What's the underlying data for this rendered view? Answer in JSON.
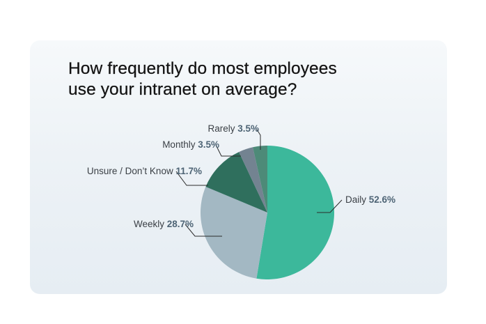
{
  "title": {
    "line1": "How frequently do most employees",
    "line2": "use your intranet on average?"
  },
  "chart_data": {
    "type": "pie",
    "title": "How frequently do most employees use your intranet on average?",
    "slices": [
      {
        "label": "Daily",
        "value": 52.6,
        "display": "52.6%",
        "color": "#3cb89b"
      },
      {
        "label": "Weekly",
        "value": 28.7,
        "display": "28.7%",
        "color": "#a3b8c3"
      },
      {
        "label": "Unsure / Don’t Know",
        "value": 11.7,
        "display": "11.7%",
        "color": "#2f6f5d"
      },
      {
        "label": "Monthly",
        "value": 3.5,
        "display": "3.5%",
        "color": "#738391"
      },
      {
        "label": "Rarely",
        "value": 3.5,
        "display": "3.5%",
        "color": "#4d8a78"
      }
    ],
    "start_angle_deg": 0,
    "direction": "clockwise",
    "legend": "none",
    "labels": "outside with leader lines"
  }
}
